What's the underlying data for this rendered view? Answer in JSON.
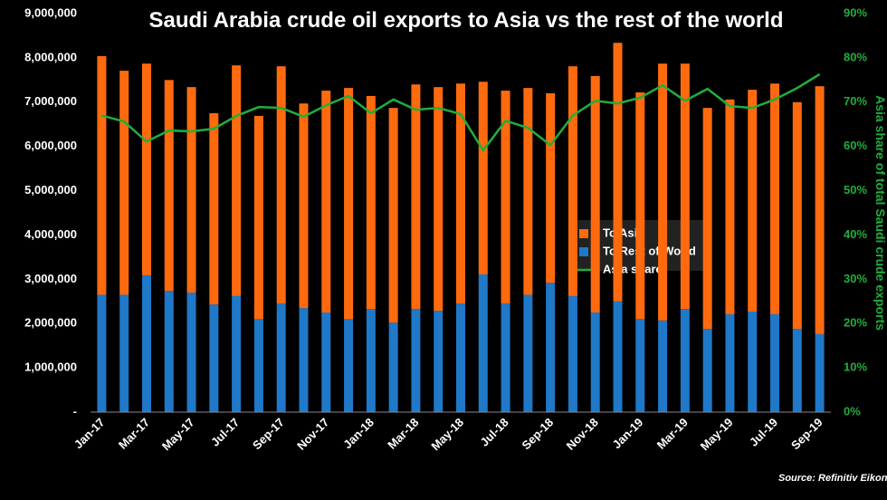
{
  "chart_data": {
    "type": "bar-line",
    "title": "Saudi Arabia crude oil exports to Asia vs the rest of the world",
    "y2_label": "Asia share of total Saudi crude exports",
    "source": "Source: Refinitiv Eikon",
    "categories": [
      "Jan-17",
      null,
      "Mar-17",
      null,
      "May-17",
      null,
      "Jul-17",
      null,
      "Sep-17",
      null,
      "Nov-17",
      null,
      "Jan-18",
      null,
      "Mar-18",
      null,
      "May-18",
      null,
      "Jul-18",
      null,
      "Sep-18",
      null,
      "Nov-18",
      null,
      "Jan-19",
      null,
      "Mar-19",
      null,
      "May-19",
      null,
      "Jul-19",
      null,
      "Sep-19"
    ],
    "series": [
      {
        "name": "To Asia",
        "type": "bar",
        "color": "#ff6a0e",
        "values": [
          5390000,
          5060000,
          4780000,
          4760000,
          4640000,
          4320000,
          5210000,
          4590000,
          5360000,
          4620000,
          5010000,
          5220000,
          4810000,
          4850000,
          5070000,
          5050000,
          4970000,
          4350000,
          4810000,
          4670000,
          4280000,
          5190000,
          5340000,
          5840000,
          5120000,
          5800000,
          5540000,
          4990000,
          4850000,
          5010000,
          5210000,
          5120000,
          5600000
        ]
      },
      {
        "name": "To Rest of World",
        "type": "bar",
        "color": "#1f78c8",
        "values": [
          2650000,
          2650000,
          3090000,
          2740000,
          2700000,
          2430000,
          2620000,
          2100000,
          2450000,
          2350000,
          2250000,
          2100000,
          2330000,
          2020000,
          2330000,
          2290000,
          2450000,
          3110000,
          2450000,
          2650000,
          2920000,
          2620000,
          2250000,
          2500000,
          2100000,
          2070000,
          2330000,
          1880000,
          2210000,
          2270000,
          2210000,
          1880000,
          1760000
        ]
      },
      {
        "name": "Asia share",
        "type": "line",
        "axis": "y2",
        "color": "#1fae3c",
        "values": [
          67,
          65.6,
          61.1,
          63.6,
          63.4,
          64,
          66.9,
          68.9,
          68.7,
          66.7,
          69.3,
          71.4,
          67.5,
          70.6,
          68.3,
          68.7,
          67.3,
          59.1,
          65.8,
          64.2,
          60.3,
          67,
          70.3,
          69.7,
          71,
          73.8,
          70.3,
          73,
          69.1,
          68.7,
          70.6,
          73.2,
          76.3
        ]
      }
    ],
    "ylim": [
      0,
      9000000
    ],
    "yticks": [
      {
        "value": 0,
        "label": "-"
      },
      {
        "value": 1000000,
        "label": "1,000,000"
      },
      {
        "value": 2000000,
        "label": "2,000,000"
      },
      {
        "value": 3000000,
        "label": "3,000,000"
      },
      {
        "value": 4000000,
        "label": "4,000,000"
      },
      {
        "value": 5000000,
        "label": "5,000,000"
      },
      {
        "value": 6000000,
        "label": "6,000,000"
      },
      {
        "value": 7000000,
        "label": "7,000,000"
      },
      {
        "value": 8000000,
        "label": "8,000,000"
      },
      {
        "value": 9000000,
        "label": "9,000,000"
      }
    ],
    "y2lim": [
      0,
      90
    ],
    "y2ticks": [
      {
        "value": 0,
        "label": "0%"
      },
      {
        "value": 10,
        "label": "10%"
      },
      {
        "value": 20,
        "label": "20%"
      },
      {
        "value": 30,
        "label": "30%"
      },
      {
        "value": 40,
        "label": "40%"
      },
      {
        "value": 50,
        "label": "50%"
      },
      {
        "value": 60,
        "label": "60%"
      },
      {
        "value": 70,
        "label": "70%"
      },
      {
        "value": 80,
        "label": "80%"
      },
      {
        "value": 90,
        "label": "90%"
      }
    ]
  }
}
